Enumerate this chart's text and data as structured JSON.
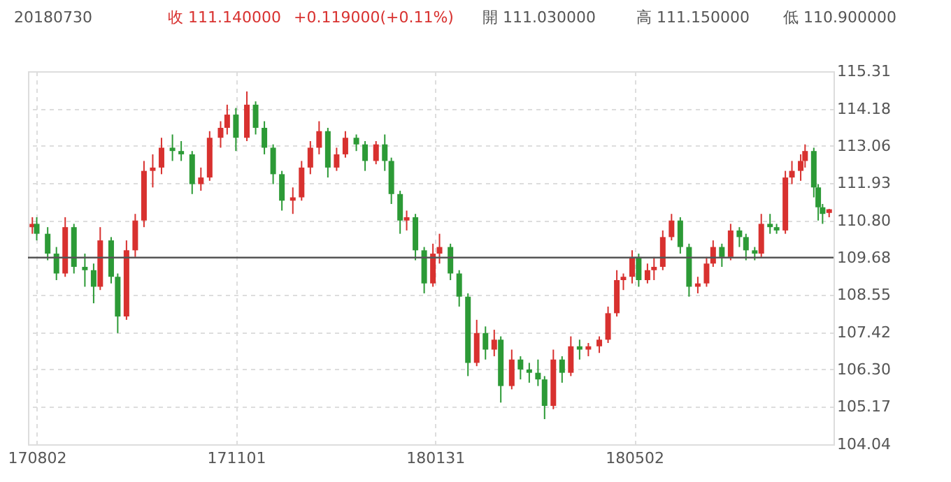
{
  "chart_data": {
    "type": "candlestick",
    "annotations": [
      "20180730",
      "收 111.140000",
      "+0.119000(+0.11%)",
      "開 111.030000",
      "高 111.150000",
      "低 110.900000"
    ],
    "x": [
      "2017-07-31",
      "2017-08-02",
      "2017-08-07",
      "2017-08-11",
      "2017-08-15",
      "2017-08-19",
      "2017-08-24",
      "2017-08-28",
      "2017-08-31",
      "2017-09-05",
      "2017-09-08",
      "2017-09-12",
      "2017-09-16",
      "2017-09-20",
      "2017-09-24",
      "2017-09-28",
      "2017-10-03",
      "2017-10-07",
      "2017-10-12",
      "2017-10-16",
      "2017-10-20",
      "2017-10-25",
      "2017-10-28",
      "2017-11-01",
      "2017-11-06",
      "2017-11-10",
      "2017-11-14",
      "2017-11-18",
      "2017-11-22",
      "2017-11-27",
      "2017-12-01",
      "2017-12-05",
      "2017-12-09",
      "2017-12-13",
      "2017-12-17",
      "2017-12-21",
      "2017-12-26",
      "2017-12-30",
      "2018-01-04",
      "2018-01-08",
      "2018-01-11",
      "2018-01-15",
      "2018-01-18",
      "2018-01-22",
      "2018-01-26",
      "2018-01-30",
      "2018-02-02",
      "2018-02-07",
      "2018-02-11",
      "2018-02-15",
      "2018-02-19",
      "2018-02-23",
      "2018-02-27",
      "2018-03-02",
      "2018-03-07",
      "2018-03-11",
      "2018-03-15",
      "2018-03-19",
      "2018-03-22",
      "2018-03-26",
      "2018-03-30",
      "2018-04-03",
      "2018-04-07",
      "2018-04-11",
      "2018-04-16",
      "2018-04-20",
      "2018-04-24",
      "2018-04-27",
      "2018-05-01",
      "2018-05-04",
      "2018-05-08",
      "2018-05-11",
      "2018-05-15",
      "2018-05-19",
      "2018-05-23",
      "2018-05-27",
      "2018-05-31",
      "2018-06-04",
      "2018-06-07",
      "2018-06-11",
      "2018-06-15",
      "2018-06-19",
      "2018-06-22",
      "2018-06-26",
      "2018-06-29",
      "2018-07-03",
      "2018-07-06",
      "2018-07-10",
      "2018-07-13",
      "2018-07-17",
      "2018-07-19",
      "2018-07-23",
      "2018-07-25",
      "2018-07-27",
      "2018-07-30"
    ],
    "ohlc": [
      [
        110.6,
        110.9,
        110.4,
        110.7
      ],
      [
        110.7,
        110.9,
        110.2,
        110.4
      ],
      [
        110.4,
        110.6,
        109.6,
        109.8
      ],
      [
        109.8,
        110.0,
        109.0,
        109.2
      ],
      [
        109.2,
        110.9,
        109.1,
        110.6
      ],
      [
        110.6,
        110.7,
        109.2,
        109.4
      ],
      [
        109.4,
        109.8,
        108.8,
        109.3
      ],
      [
        109.3,
        109.5,
        108.3,
        108.8
      ],
      [
        108.8,
        110.6,
        108.7,
        110.2
      ],
      [
        110.2,
        110.3,
        108.9,
        109.1
      ],
      [
        109.1,
        109.2,
        107.4,
        107.9
      ],
      [
        107.9,
        110.2,
        107.8,
        109.9
      ],
      [
        109.9,
        111.0,
        109.7,
        110.8
      ],
      [
        110.8,
        112.6,
        110.6,
        112.3
      ],
      [
        112.3,
        112.8,
        111.8,
        112.4
      ],
      [
        112.4,
        113.3,
        112.2,
        113.0
      ],
      [
        113.0,
        113.4,
        112.6,
        112.9
      ],
      [
        112.9,
        113.2,
        112.6,
        112.8
      ],
      [
        112.8,
        112.9,
        111.6,
        111.9
      ],
      [
        111.9,
        112.4,
        111.7,
        112.1
      ],
      [
        112.1,
        113.5,
        112.0,
        113.3
      ],
      [
        113.3,
        113.8,
        113.0,
        113.6
      ],
      [
        113.6,
        114.3,
        113.4,
        114.0
      ],
      [
        114.0,
        114.2,
        112.9,
        113.3
      ],
      [
        113.3,
        114.7,
        113.2,
        114.3
      ],
      [
        114.3,
        114.4,
        113.4,
        113.6
      ],
      [
        113.6,
        113.8,
        112.8,
        113.0
      ],
      [
        113.0,
        113.1,
        111.9,
        112.2
      ],
      [
        112.2,
        112.3,
        111.1,
        111.4
      ],
      [
        111.4,
        111.8,
        111.0,
        111.5
      ],
      [
        111.5,
        112.6,
        111.4,
        112.4
      ],
      [
        112.4,
        113.2,
        112.2,
        113.0
      ],
      [
        113.0,
        113.8,
        112.8,
        113.5
      ],
      [
        113.5,
        113.6,
        112.1,
        112.4
      ],
      [
        112.4,
        113.0,
        112.3,
        112.8
      ],
      [
        112.8,
        113.5,
        112.7,
        113.3
      ],
      [
        113.3,
        113.4,
        112.9,
        113.1
      ],
      [
        113.1,
        113.2,
        112.3,
        112.6
      ],
      [
        112.6,
        113.2,
        112.5,
        113.1
      ],
      [
        113.1,
        113.4,
        112.3,
        112.6
      ],
      [
        112.6,
        112.7,
        111.3,
        111.6
      ],
      [
        111.6,
        111.7,
        110.4,
        110.8
      ],
      [
        110.8,
        111.1,
        110.5,
        110.9
      ],
      [
        110.9,
        111.0,
        109.6,
        109.9
      ],
      [
        109.9,
        110.0,
        108.6,
        108.9
      ],
      [
        108.9,
        110.1,
        108.8,
        109.8
      ],
      [
        109.8,
        110.4,
        109.5,
        110.0
      ],
      [
        110.0,
        110.1,
        109.0,
        109.2
      ],
      [
        109.2,
        109.3,
        108.2,
        108.5
      ],
      [
        108.5,
        108.6,
        106.1,
        106.5
      ],
      [
        106.5,
        107.8,
        106.4,
        107.4
      ],
      [
        107.4,
        107.6,
        106.6,
        106.9
      ],
      [
        106.9,
        107.5,
        106.7,
        107.2
      ],
      [
        107.2,
        107.3,
        105.3,
        105.8
      ],
      [
        105.8,
        106.9,
        105.7,
        106.6
      ],
      [
        106.6,
        106.7,
        106.0,
        106.3
      ],
      [
        106.3,
        106.5,
        105.9,
        106.2
      ],
      [
        106.2,
        106.6,
        105.8,
        106.0
      ],
      [
        106.0,
        106.1,
        104.8,
        105.2
      ],
      [
        105.2,
        106.9,
        105.1,
        106.6
      ],
      [
        106.6,
        106.7,
        105.9,
        106.2
      ],
      [
        106.2,
        107.3,
        106.1,
        107.0
      ],
      [
        107.0,
        107.2,
        106.6,
        106.9
      ],
      [
        106.9,
        107.1,
        106.7,
        107.0
      ],
      [
        107.0,
        107.3,
        106.8,
        107.2
      ],
      [
        107.2,
        108.2,
        107.1,
        108.0
      ],
      [
        108.0,
        109.3,
        107.9,
        109.0
      ],
      [
        109.0,
        109.2,
        108.7,
        109.1
      ],
      [
        109.1,
        109.9,
        108.9,
        109.7
      ],
      [
        109.7,
        109.8,
        108.8,
        109.0
      ],
      [
        109.0,
        109.5,
        108.9,
        109.3
      ],
      [
        109.3,
        109.7,
        109.0,
        109.4
      ],
      [
        109.4,
        110.5,
        109.3,
        110.3
      ],
      [
        110.3,
        111.0,
        110.2,
        110.8
      ],
      [
        110.8,
        110.9,
        109.8,
        110.0
      ],
      [
        110.0,
        110.1,
        108.5,
        108.8
      ],
      [
        108.8,
        109.1,
        108.6,
        108.9
      ],
      [
        108.9,
        109.7,
        108.8,
        109.5
      ],
      [
        109.5,
        110.2,
        109.4,
        110.0
      ],
      [
        110.0,
        110.1,
        109.4,
        109.7
      ],
      [
        109.7,
        110.7,
        109.6,
        110.5
      ],
      [
        110.5,
        110.6,
        110.0,
        110.3
      ],
      [
        110.3,
        110.4,
        109.6,
        109.9
      ],
      [
        109.9,
        110.0,
        109.6,
        109.8
      ],
      [
        109.8,
        111.0,
        109.7,
        110.7
      ],
      [
        110.7,
        111.0,
        110.4,
        110.6
      ],
      [
        110.6,
        110.7,
        110.4,
        110.5
      ],
      [
        110.5,
        112.3,
        110.4,
        112.1
      ],
      [
        112.1,
        112.6,
        111.9,
        112.3
      ],
      [
        112.3,
        112.8,
        112.0,
        112.6
      ],
      [
        112.6,
        113.1,
        112.4,
        112.9
      ],
      [
        112.9,
        113.0,
        111.5,
        111.8
      ],
      [
        111.8,
        111.9,
        110.8,
        111.2
      ],
      [
        111.2,
        111.3,
        110.7,
        111.0
      ],
      [
        111.03,
        111.15,
        110.9,
        111.14
      ]
    ],
    "colors": [
      "#d8312f",
      "#2c9a36",
      "#2c9a36",
      "#2c9a36",
      "#d8312f",
      "#2c9a36",
      "#2c9a36",
      "#2c9a36",
      "#d8312f",
      "#2c9a36",
      "#2c9a36",
      "#d8312f",
      "#d8312f",
      "#d8312f",
      "#d8312f",
      "#d8312f",
      "#2c9a36",
      "#2c9a36",
      "#2c9a36",
      "#d8312f",
      "#d8312f",
      "#d8312f",
      "#d8312f",
      "#2c9a36",
      "#d8312f",
      "#2c9a36",
      "#2c9a36",
      "#2c9a36",
      "#2c9a36",
      "#d8312f",
      "#d8312f",
      "#d8312f",
      "#d8312f",
      "#2c9a36",
      "#d8312f",
      "#d8312f",
      "#2c9a36",
      "#2c9a36",
      "#d8312f",
      "#2c9a36",
      "#2c9a36",
      "#2c9a36",
      "#d8312f",
      "#2c9a36",
      "#2c9a36",
      "#d8312f",
      "#d8312f",
      "#2c9a36",
      "#2c9a36",
      "#2c9a36",
      "#d8312f",
      "#2c9a36",
      "#d8312f",
      "#2c9a36",
      "#d8312f",
      "#2c9a36",
      "#2c9a36",
      "#2c9a36",
      "#2c9a36",
      "#d8312f",
      "#2c9a36",
      "#d8312f",
      "#2c9a36",
      "#d8312f",
      "#d8312f",
      "#d8312f",
      "#d8312f",
      "#d8312f",
      "#d8312f",
      "#2c9a36",
      "#d8312f",
      "#d8312f",
      "#d8312f",
      "#d8312f",
      "#2c9a36",
      "#2c9a36",
      "#d8312f",
      "#d8312f",
      "#d8312f",
      "#2c9a36",
      "#d8312f",
      "#2c9a36",
      "#2c9a36",
      "#2c9a36",
      "#d8312f",
      "#2c9a36",
      "#2c9a36",
      "#d8312f",
      "#d8312f",
      "#d8312f",
      "#d8312f",
      "#2c9a36",
      "#2c9a36",
      "#2c9a36",
      "#d8312f"
    ],
    "xlim": [
      "2017-07-29",
      "2018-08-01"
    ],
    "xticks": [
      {
        "value": "2017-08-02",
        "label": "170802"
      },
      {
        "value": "2017-11-01",
        "label": "171101"
      },
      {
        "value": "2018-01-31",
        "label": "180131"
      },
      {
        "value": "2018-05-02",
        "label": "180502"
      }
    ],
    "ylim": [
      104.04,
      115.31
    ],
    "yticks": [
      104.04,
      105.17,
      {
        "value": 106.3,
        "label": "106.30"
      },
      107.42,
      108.55,
      109.68,
      {
        "value": 110.8,
        "label": "110.80"
      },
      111.93,
      113.06,
      114.18,
      115.31
    ],
    "ref_lines": [
      {
        "axis": "y",
        "value": 109.68,
        "color": "#555555"
      }
    ],
    "grid": true
  }
}
